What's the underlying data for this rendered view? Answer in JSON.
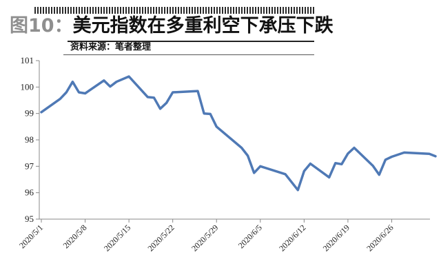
{
  "header": {
    "figure_label": "图10：",
    "title": "美元指数在多重利空下承压下跌",
    "source": "资料来源：笔者整理"
  },
  "colors": {
    "line": "#4f79b5",
    "axis": "#888888",
    "title_fig": "#8f8f8f"
  },
  "chart_data": {
    "type": "line",
    "title": "美元指数在多重利空下承压下跌",
    "xlabel": "",
    "ylabel": "",
    "ylim": [
      95,
      101
    ],
    "yticks": [
      95,
      96,
      97,
      98,
      99,
      100,
      101
    ],
    "grid": false,
    "x_ticks": [
      "2020/5/1",
      "2020/5/8",
      "2020/5/15",
      "2020/5/22",
      "2020/5/29",
      "2020/6/5",
      "2020/6/12",
      "2020/6/19",
      "2020/6/26"
    ],
    "series": [
      {
        "name": "",
        "points": [
          [
            "2020/5/1",
            99.05
          ],
          [
            "2020/5/4",
            99.55
          ],
          [
            "2020/5/5",
            99.8
          ],
          [
            "2020/5/6",
            100.2
          ],
          [
            "2020/5/7",
            99.8
          ],
          [
            "2020/5/8",
            99.76
          ],
          [
            "2020/5/11",
            100.25
          ],
          [
            "2020/5/12",
            100.02
          ],
          [
            "2020/5/13",
            100.2
          ],
          [
            "2020/5/15",
            100.4
          ],
          [
            "2020/5/18",
            99.62
          ],
          [
            "2020/5/19",
            99.6
          ],
          [
            "2020/5/20",
            99.18
          ],
          [
            "2020/5/21",
            99.4
          ],
          [
            "2020/5/22",
            99.8
          ],
          [
            "2020/5/26",
            99.85
          ],
          [
            "2020/5/27",
            99.0
          ],
          [
            "2020/5/28",
            98.98
          ],
          [
            "2020/5/29",
            98.5
          ],
          [
            "2020/6/2",
            97.7
          ],
          [
            "2020/6/3",
            97.4
          ],
          [
            "2020/6/4",
            96.75
          ],
          [
            "2020/6/5",
            97.0
          ],
          [
            "2020/6/9",
            96.7
          ],
          [
            "2020/6/10",
            96.4
          ],
          [
            "2020/6/11",
            96.1
          ],
          [
            "2020/6/12",
            96.82
          ],
          [
            "2020/6/13",
            97.1
          ],
          [
            "2020/6/16",
            96.58
          ],
          [
            "2020/6/17",
            97.12
          ],
          [
            "2020/6/18",
            97.08
          ],
          [
            "2020/6/19",
            97.48
          ],
          [
            "2020/6/20",
            97.7
          ],
          [
            "2020/6/23",
            97.02
          ],
          [
            "2020/6/24",
            96.68
          ],
          [
            "2020/6/25",
            97.25
          ],
          [
            "2020/6/26",
            97.36
          ],
          [
            "2020/6/28",
            97.52
          ],
          [
            "2020/7/2",
            97.47
          ],
          [
            "2020/7/3",
            97.38
          ]
        ]
      }
    ]
  }
}
